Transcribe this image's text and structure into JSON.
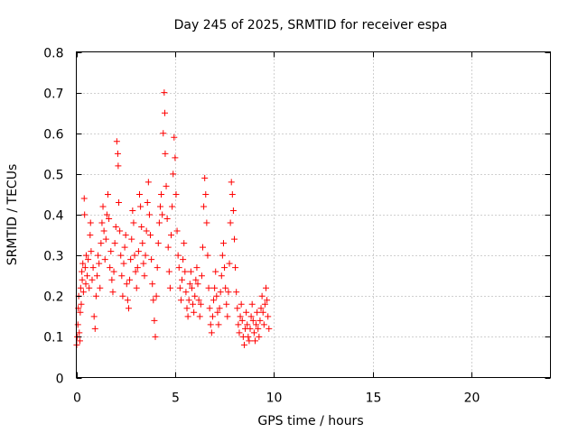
{
  "chart_data": {
    "type": "scatter",
    "title": "Day 245 of 2025, SRMTID for receiver espa",
    "xlabel": "GPS time / hours",
    "ylabel": "SRMTID / TECUs",
    "xlim": [
      0,
      24
    ],
    "ylim": [
      0,
      0.8
    ],
    "xticks": [
      0,
      5,
      10,
      15,
      20
    ],
    "yticks": [
      0,
      0.1,
      0.2,
      0.3,
      0.4,
      0.5,
      0.6,
      0.7,
      0.8
    ],
    "xtick_labels": [
      "0",
      "5",
      "10",
      "15",
      "20"
    ],
    "ytick_labels": [
      "0",
      "0.1",
      "0.2",
      "0.3",
      "0.4",
      "0.5",
      "0.6",
      "0.7",
      "0.8"
    ],
    "grid": true,
    "marker": "+",
    "color": "#ff0000",
    "series": [
      {
        "name": "SRMTID",
        "points": [
          [
            0.02,
            0.08
          ],
          [
            0.05,
            0.1
          ],
          [
            0.08,
            0.13
          ],
          [
            0.1,
            0.17
          ],
          [
            0.12,
            0.2
          ],
          [
            0.15,
            0.11
          ],
          [
            0.18,
            0.09
          ],
          [
            0.2,
            0.16
          ],
          [
            0.22,
            0.22
          ],
          [
            0.25,
            0.18
          ],
          [
            0.28,
            0.26
          ],
          [
            0.3,
            0.24
          ],
          [
            0.33,
            0.28
          ],
          [
            0.36,
            0.21
          ],
          [
            0.4,
            0.44
          ],
          [
            0.42,
            0.4
          ],
          [
            0.45,
            0.27
          ],
          [
            0.48,
            0.23
          ],
          [
            0.5,
            0.3
          ],
          [
            0.55,
            0.25
          ],
          [
            0.6,
            0.29
          ],
          [
            0.65,
            0.22
          ],
          [
            0.7,
            0.35
          ],
          [
            0.72,
            0.38
          ],
          [
            0.75,
            0.31
          ],
          [
            0.8,
            0.24
          ],
          [
            0.85,
            0.27
          ],
          [
            0.9,
            0.15
          ],
          [
            0.95,
            0.12
          ],
          [
            1.0,
            0.2
          ],
          [
            1.05,
            0.25
          ],
          [
            1.1,
            0.3
          ],
          [
            1.15,
            0.28
          ],
          [
            1.2,
            0.22
          ],
          [
            1.25,
            0.33
          ],
          [
            1.3,
            0.38
          ],
          [
            1.35,
            0.42
          ],
          [
            1.4,
            0.36
          ],
          [
            1.45,
            0.29
          ],
          [
            1.5,
            0.34
          ],
          [
            1.55,
            0.4
          ],
          [
            1.6,
            0.45
          ],
          [
            1.65,
            0.39
          ],
          [
            1.7,
            0.27
          ],
          [
            1.75,
            0.31
          ],
          [
            1.8,
            0.24
          ],
          [
            1.85,
            0.21
          ],
          [
            1.9,
            0.26
          ],
          [
            1.95,
            0.33
          ],
          [
            2.0,
            0.37
          ],
          [
            2.05,
            0.58
          ],
          [
            2.1,
            0.55
          ],
          [
            2.12,
            0.52
          ],
          [
            2.15,
            0.43
          ],
          [
            2.2,
            0.36
          ],
          [
            2.25,
            0.3
          ],
          [
            2.3,
            0.25
          ],
          [
            2.35,
            0.2
          ],
          [
            2.4,
            0.28
          ],
          [
            2.45,
            0.32
          ],
          [
            2.5,
            0.35
          ],
          [
            2.55,
            0.23
          ],
          [
            2.6,
            0.19
          ],
          [
            2.65,
            0.17
          ],
          [
            2.7,
            0.24
          ],
          [
            2.75,
            0.29
          ],
          [
            2.8,
            0.34
          ],
          [
            2.85,
            0.41
          ],
          [
            2.9,
            0.38
          ],
          [
            2.95,
            0.3
          ],
          [
            3.0,
            0.26
          ],
          [
            3.05,
            0.22
          ],
          [
            3.1,
            0.27
          ],
          [
            3.15,
            0.31
          ],
          [
            3.2,
            0.45
          ],
          [
            3.25,
            0.42
          ],
          [
            3.3,
            0.37
          ],
          [
            3.35,
            0.33
          ],
          [
            3.4,
            0.28
          ],
          [
            3.45,
            0.25
          ],
          [
            3.5,
            0.3
          ],
          [
            3.55,
            0.36
          ],
          [
            3.6,
            0.43
          ],
          [
            3.65,
            0.48
          ],
          [
            3.7,
            0.4
          ],
          [
            3.75,
            0.35
          ],
          [
            3.8,
            0.29
          ],
          [
            3.85,
            0.23
          ],
          [
            3.9,
            0.19
          ],
          [
            3.95,
            0.14
          ],
          [
            4.0,
            0.1
          ],
          [
            4.05,
            0.2
          ],
          [
            4.1,
            0.27
          ],
          [
            4.15,
            0.33
          ],
          [
            4.2,
            0.38
          ],
          [
            4.25,
            0.42
          ],
          [
            4.3,
            0.45
          ],
          [
            4.35,
            0.4
          ],
          [
            4.4,
            0.6
          ],
          [
            4.45,
            0.7
          ],
          [
            4.48,
            0.65
          ],
          [
            4.5,
            0.55
          ],
          [
            4.55,
            0.47
          ],
          [
            4.6,
            0.39
          ],
          [
            4.65,
            0.32
          ],
          [
            4.7,
            0.26
          ],
          [
            4.75,
            0.22
          ],
          [
            4.8,
            0.35
          ],
          [
            4.85,
            0.42
          ],
          [
            4.9,
            0.5
          ],
          [
            4.95,
            0.59
          ],
          [
            5.0,
            0.54
          ],
          [
            5.05,
            0.45
          ],
          [
            5.1,
            0.36
          ],
          [
            5.15,
            0.3
          ],
          [
            5.2,
            0.27
          ],
          [
            5.25,
            0.22
          ],
          [
            5.3,
            0.19
          ],
          [
            5.35,
            0.24
          ],
          [
            5.4,
            0.29
          ],
          [
            5.45,
            0.33
          ],
          [
            5.5,
            0.26
          ],
          [
            5.55,
            0.21
          ],
          [
            5.6,
            0.17
          ],
          [
            5.65,
            0.15
          ],
          [
            5.7,
            0.19
          ],
          [
            5.75,
            0.23
          ],
          [
            5.8,
            0.26
          ],
          [
            5.85,
            0.22
          ],
          [
            5.9,
            0.18
          ],
          [
            5.95,
            0.16
          ],
          [
            6.0,
            0.2
          ],
          [
            6.05,
            0.24
          ],
          [
            6.1,
            0.27
          ],
          [
            6.15,
            0.23
          ],
          [
            6.2,
            0.19
          ],
          [
            6.25,
            0.15
          ],
          [
            6.3,
            0.18
          ],
          [
            6.35,
            0.25
          ],
          [
            6.4,
            0.32
          ],
          [
            6.45,
            0.42
          ],
          [
            6.5,
            0.49
          ],
          [
            6.55,
            0.45
          ],
          [
            6.6,
            0.38
          ],
          [
            6.65,
            0.3
          ],
          [
            6.7,
            0.22
          ],
          [
            6.75,
            0.17
          ],
          [
            6.8,
            0.13
          ],
          [
            6.85,
            0.11
          ],
          [
            6.9,
            0.15
          ],
          [
            6.95,
            0.19
          ],
          [
            7.0,
            0.22
          ],
          [
            7.05,
            0.26
          ],
          [
            7.1,
            0.2
          ],
          [
            7.15,
            0.16
          ],
          [
            7.2,
            0.13
          ],
          [
            7.25,
            0.17
          ],
          [
            7.3,
            0.21
          ],
          [
            7.35,
            0.25
          ],
          [
            7.4,
            0.3
          ],
          [
            7.45,
            0.33
          ],
          [
            7.5,
            0.27
          ],
          [
            7.55,
            0.22
          ],
          [
            7.6,
            0.18
          ],
          [
            7.65,
            0.15
          ],
          [
            7.7,
            0.21
          ],
          [
            7.75,
            0.28
          ],
          [
            7.8,
            0.38
          ],
          [
            7.85,
            0.48
          ],
          [
            7.9,
            0.45
          ],
          [
            7.95,
            0.41
          ],
          [
            8.0,
            0.34
          ],
          [
            8.05,
            0.27
          ],
          [
            8.1,
            0.21
          ],
          [
            8.15,
            0.17
          ],
          [
            8.2,
            0.13
          ],
          [
            8.25,
            0.11
          ],
          [
            8.3,
            0.15
          ],
          [
            8.35,
            0.18
          ],
          [
            8.4,
            0.14
          ],
          [
            8.45,
            0.1
          ],
          [
            8.5,
            0.08
          ],
          [
            8.55,
            0.12
          ],
          [
            8.6,
            0.16
          ],
          [
            8.65,
            0.13
          ],
          [
            8.7,
            0.1
          ],
          [
            8.75,
            0.09
          ],
          [
            8.8,
            0.12
          ],
          [
            8.85,
            0.15
          ],
          [
            8.9,
            0.18
          ],
          [
            8.95,
            0.14
          ],
          [
            9.0,
            0.11
          ],
          [
            9.05,
            0.09
          ],
          [
            9.1,
            0.13
          ],
          [
            9.15,
            0.16
          ],
          [
            9.2,
            0.12
          ],
          [
            9.25,
            0.1
          ],
          [
            9.3,
            0.14
          ],
          [
            9.35,
            0.17
          ],
          [
            9.4,
            0.2
          ],
          [
            9.45,
            0.16
          ],
          [
            9.5,
            0.13
          ],
          [
            9.55,
            0.18
          ],
          [
            9.6,
            0.22
          ],
          [
            9.65,
            0.19
          ],
          [
            9.7,
            0.15
          ],
          [
            9.75,
            0.12
          ]
        ]
      }
    ]
  }
}
